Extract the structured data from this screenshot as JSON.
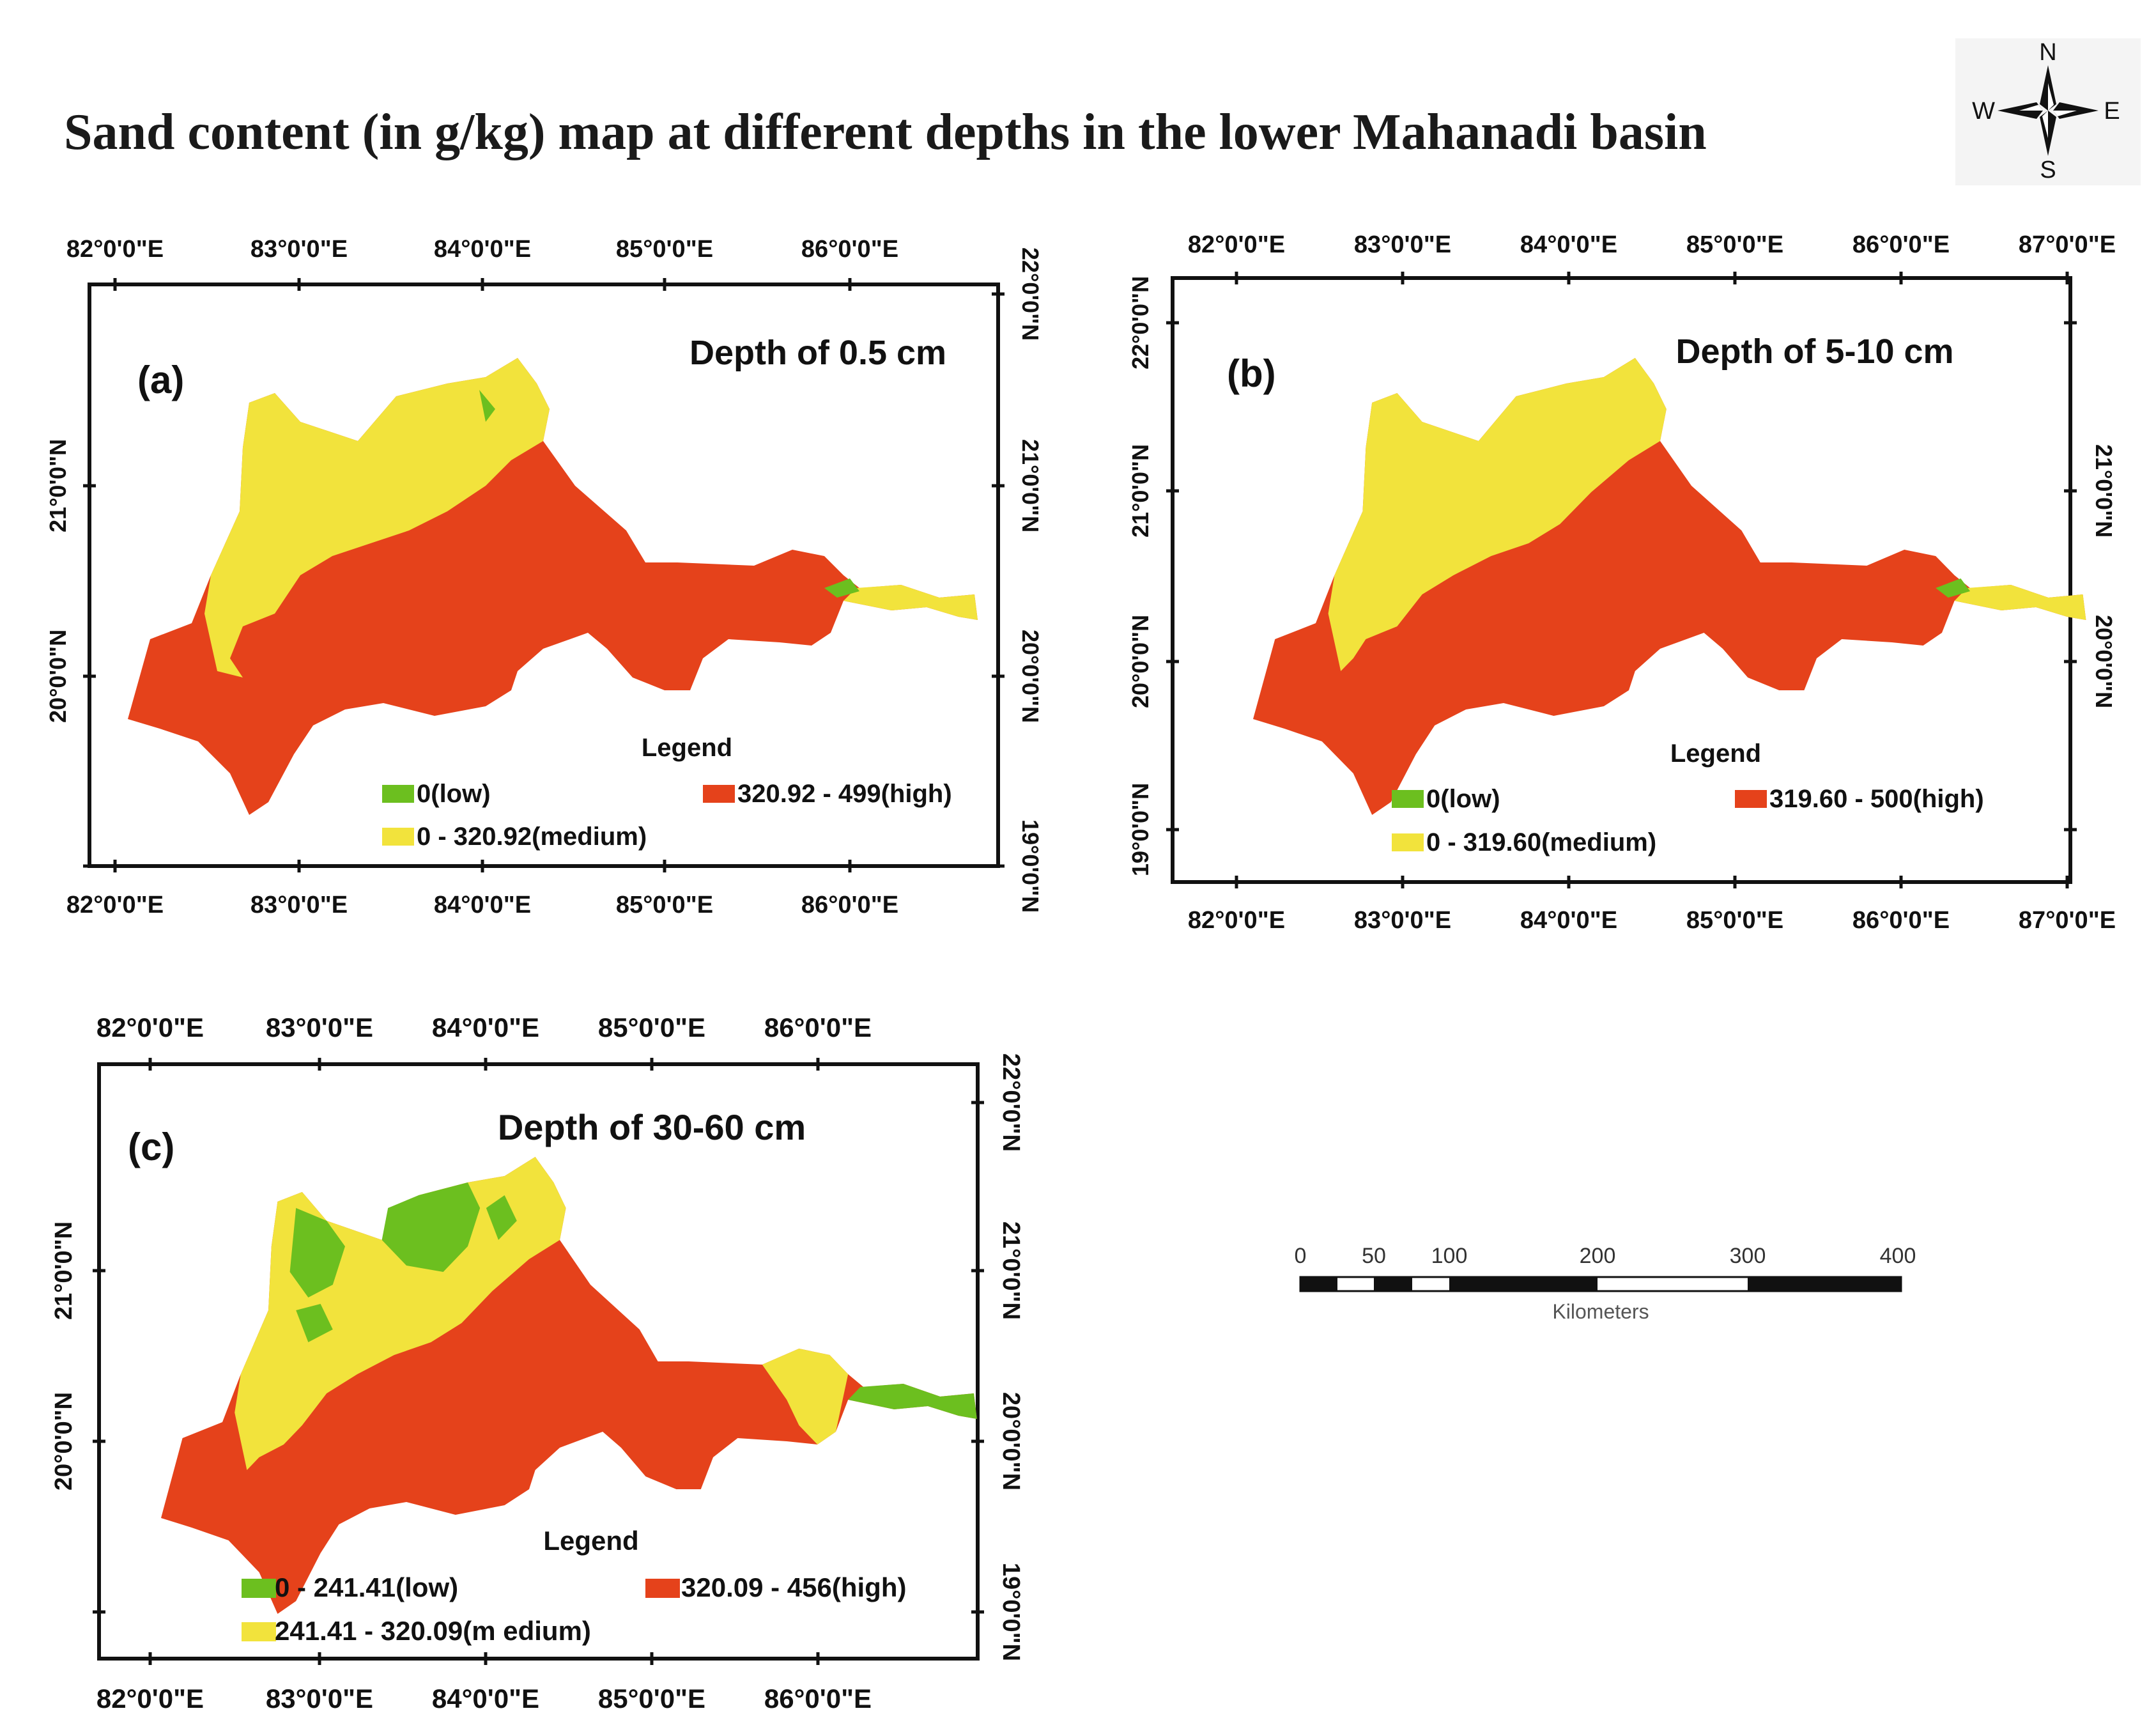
{
  "title": "Sand content (in g/kg) map at different depths in the lower Mahanadi basin",
  "compass": {
    "n": "N",
    "e": "E",
    "s": "S",
    "w": "W"
  },
  "colors": {
    "low": "#6cbf1f",
    "medium": "#f2e33c",
    "high": "#e5421b",
    "frame": "#111111"
  },
  "panels": [
    {
      "label": "(a)",
      "depth_title": "Depth of 0.5 cm",
      "lon_ticks": [
        "82°0'0\"E",
        "83°0'0\"E",
        "84°0'0\"E",
        "85°0'0\"E",
        "86°0'0\"E"
      ],
      "lat_ticks_left": [
        "21°0'0\"N",
        "20°0'0\"N"
      ],
      "lat_ticks_right": [
        "22°0'0\"N",
        "21°0'0\"N",
        "20°0'0\"N",
        "19°0'0\"N"
      ],
      "legend": {
        "heading": "Legend",
        "low": "0(low)",
        "medium": "0 - 320.92(medium)",
        "high": "320.92 - 499(high)"
      }
    },
    {
      "label": "(b)",
      "depth_title": "Depth of 5-10 cm",
      "lon_ticks": [
        "82°0'0\"E",
        "83°0'0\"E",
        "84°0'0\"E",
        "85°0'0\"E",
        "86°0'0\"E",
        "87°0'0\"E"
      ],
      "lat_ticks_left": [
        "22°0'0\"N",
        "21°0'0\"N",
        "20°0'0\"N",
        "19°0'0\"N"
      ],
      "lat_ticks_right": [
        "21°0'0\"N",
        "20°0'0\"N"
      ],
      "legend": {
        "heading": "Legend",
        "low": "0(low)",
        "medium": "0 - 319.60(medium)",
        "high": "319.60 - 500(high)"
      }
    },
    {
      "label": "(c)",
      "depth_title": "Depth of 30-60 cm",
      "lon_ticks": [
        "82°0'0\"E",
        "83°0'0\"E",
        "84°0'0\"E",
        "85°0'0\"E",
        "86°0'0\"E"
      ],
      "lat_ticks_left": [
        "21°0'0\"N",
        "20°0'0\"N"
      ],
      "lat_ticks_right": [
        "22°0'0\"N",
        "21°0'0\"N",
        "20°0'0\"N",
        "19°0'0\"N"
      ],
      "legend": {
        "heading": "Legend",
        "low": "0 - 241.41(low)",
        "medium": "241.41 - 320.09(m edium)",
        "high": "320.09 - 456(high)"
      }
    }
  ],
  "scale_bar": {
    "ticks": [
      "0",
      "50",
      "100",
      "200",
      "300",
      "400"
    ],
    "unit": "Kilometers"
  }
}
